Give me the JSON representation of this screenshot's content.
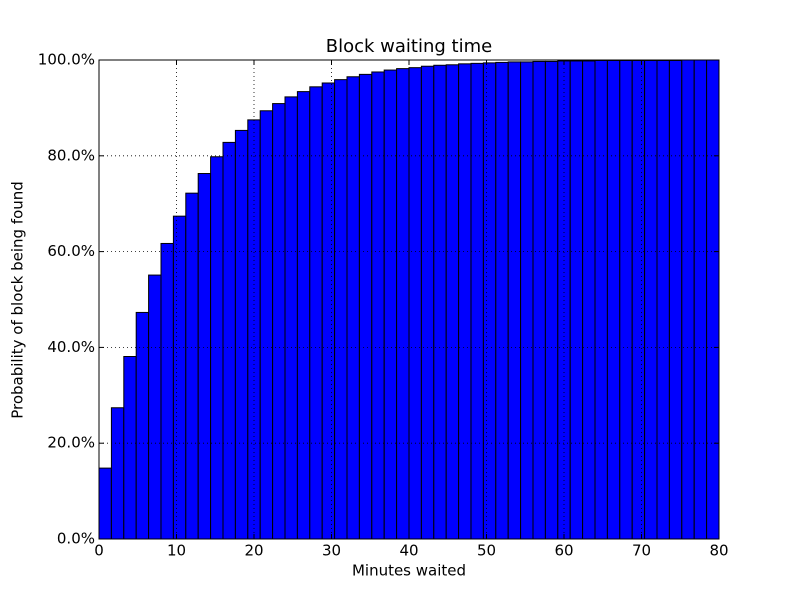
{
  "chart_data": {
    "type": "histogram",
    "title": "Block waiting time",
    "xlabel": "Minutes waited",
    "ylabel": "Probability of block being found",
    "bins": [
      0,
      1.6,
      3.2,
      4.8,
      6.4,
      8,
      9.6,
      11.2,
      12.8,
      14.4,
      16,
      17.6,
      19.2,
      20.8,
      22.4,
      24,
      25.6,
      27.2,
      28.8,
      30.4,
      32,
      33.6,
      35.2,
      36.8,
      38.4,
      40,
      41.6,
      43.2,
      44.8,
      46.4,
      48,
      49.6,
      51.2,
      52.8,
      54.4,
      56,
      57.6,
      59.2,
      60.8,
      62.4,
      64,
      65.6,
      67.2,
      68.8,
      70.4,
      72,
      73.6,
      75.2,
      76.8,
      78.4,
      80
    ],
    "values": [
      14.8,
      27.4,
      38.1,
      47.3,
      55.1,
      61.7,
      67.4,
      72.2,
      76.3,
      79.8,
      82.8,
      85.3,
      87.5,
      89.4,
      90.9,
      92.3,
      93.4,
      94.4,
      95.2,
      95.9,
      96.5,
      97.0,
      97.5,
      97.9,
      98.2,
      98.4,
      98.7,
      98.9,
      99.0,
      99.2,
      99.3,
      99.4,
      99.5,
      99.6,
      99.6,
      99.7,
      99.7,
      99.8,
      99.8,
      99.8,
      99.9,
      99.9,
      99.9,
      99.9,
      99.9,
      99.9,
      99.9,
      100.0,
      100.0,
      100.0
    ],
    "color": "#0000ff",
    "xlim": [
      0,
      80
    ],
    "xticks": [
      0,
      10,
      20,
      30,
      40,
      50,
      60,
      70,
      80
    ],
    "ylim": [
      0,
      100
    ],
    "yticks": [
      {
        "value": 0,
        "label": "0.0%"
      },
      {
        "value": 20,
        "label": "20.0%"
      },
      {
        "value": 40,
        "label": "40.0%"
      },
      {
        "value": 60,
        "label": "60.0%"
      },
      {
        "value": 80,
        "label": "80.0%"
      },
      {
        "value": 100,
        "label": "100.0%"
      }
    ],
    "grid": true
  }
}
